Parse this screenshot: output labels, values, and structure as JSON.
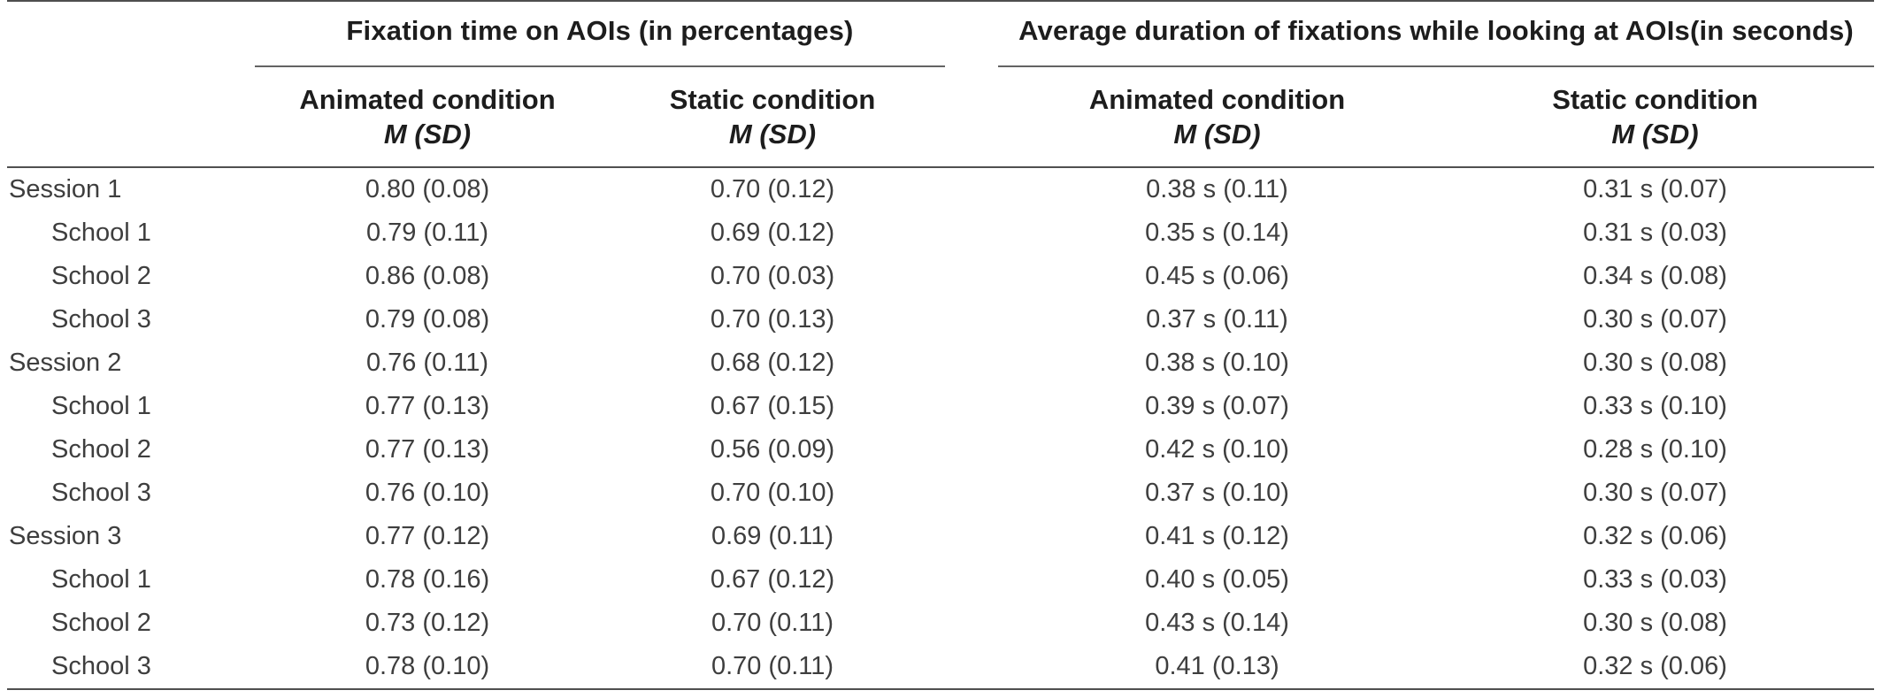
{
  "colors": {
    "background": "#ffffff",
    "header_text": "#1d1d1d",
    "body_text": "#3e3e3e",
    "rule": "#4f4f4f"
  },
  "chart_data": {
    "type": "table",
    "title": "",
    "row_header": "",
    "column_groups": [
      {
        "title": "Fixation time on AOIs (in percentages)",
        "columns": [
          {
            "condition": "Animated condition",
            "measure": "M (SD)"
          },
          {
            "condition": "Static condition",
            "measure": "M (SD)"
          }
        ]
      },
      {
        "title": "Average duration of fixations while looking at AOIs(in seconds)",
        "columns": [
          {
            "condition": "Animated condition",
            "measure": "M (SD)"
          },
          {
            "condition": "Static condition",
            "measure": "M (SD)"
          }
        ]
      }
    ],
    "rows": [
      {
        "label": "Session 1",
        "indent": false,
        "values": [
          "0.80 (0.08)",
          "0.70 (0.12)",
          "0.38 s (0.11)",
          "0.31 s (0.07)"
        ]
      },
      {
        "label": "School 1",
        "indent": true,
        "values": [
          "0.79 (0.11)",
          "0.69 (0.12)",
          "0.35 s (0.14)",
          "0.31 s (0.03)"
        ]
      },
      {
        "label": "School 2",
        "indent": true,
        "values": [
          "0.86 (0.08)",
          "0.70 (0.03)",
          "0.45 s (0.06)",
          "0.34 s (0.08)"
        ]
      },
      {
        "label": "School 3",
        "indent": true,
        "values": [
          "0.79 (0.08)",
          "0.70 (0.13)",
          "0.37 s (0.11)",
          "0.30 s (0.07)"
        ]
      },
      {
        "label": "Session 2",
        "indent": false,
        "values": [
          "0.76 (0.11)",
          "0.68 (0.12)",
          "0.38 s (0.10)",
          "0.30 s (0.08)"
        ]
      },
      {
        "label": "School 1",
        "indent": true,
        "values": [
          "0.77 (0.13)",
          "0.67 (0.15)",
          "0.39 s (0.07)",
          "0.33 s (0.10)"
        ]
      },
      {
        "label": "School 2",
        "indent": true,
        "values": [
          "0.77 (0.13)",
          "0.56 (0.09)",
          "0.42 s (0.10)",
          "0.28 s (0.10)"
        ]
      },
      {
        "label": "School 3",
        "indent": true,
        "values": [
          "0.76 (0.10)",
          "0.70 (0.10)",
          "0.37 s (0.10)",
          "0.30 s (0.07)"
        ]
      },
      {
        "label": "Session 3",
        "indent": false,
        "values": [
          "0.77 (0.12)",
          "0.69 (0.11)",
          "0.41 s (0.12)",
          "0.32 s (0.06)"
        ]
      },
      {
        "label": "School 1",
        "indent": true,
        "values": [
          "0.78 (0.16)",
          "0.67 (0.12)",
          "0.40 s (0.05)",
          "0.33 s (0.03)"
        ]
      },
      {
        "label": "School 2",
        "indent": true,
        "values": [
          "0.73 (0.12)",
          "0.70 (0.11)",
          "0.43 s (0.14)",
          "0.30 s (0.08)"
        ]
      },
      {
        "label": "School 3",
        "indent": true,
        "values": [
          "0.78 (0.10)",
          "0.70 (0.11)",
          "0.41 (0.13)",
          "0.32 s (0.06)"
        ]
      }
    ],
    "layout": {
      "grid": "off",
      "rules": [
        "top",
        "below-group-titles (per group, with gap)",
        "below-sub-headers",
        "bottom"
      ],
      "value_alignment": "center",
      "label_alignment": "left, schools indented"
    }
  }
}
